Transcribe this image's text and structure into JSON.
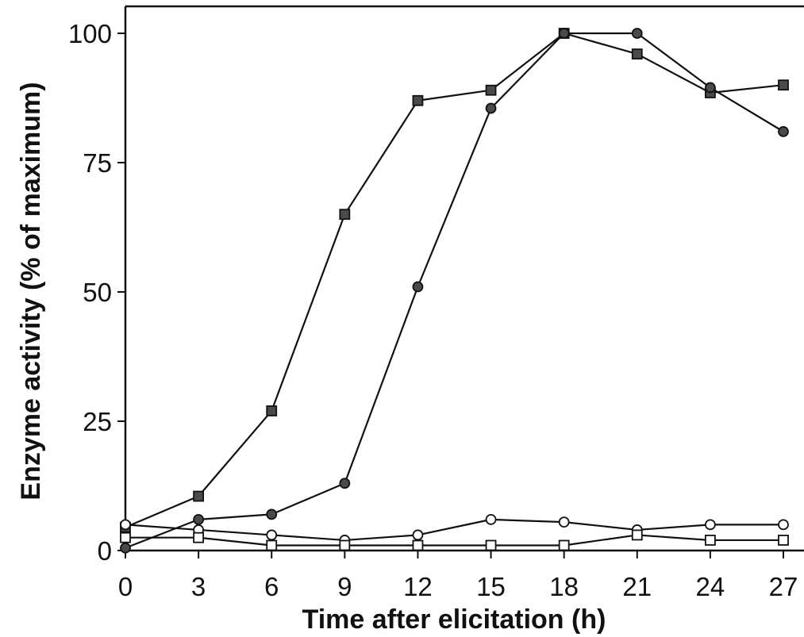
{
  "chart_data": {
    "type": "line",
    "title": "",
    "xlabel": "Time after elicitation (h)",
    "ylabel": "Enzyme activity (% of maximum)",
    "xlim": [
      0,
      27
    ],
    "ylim": [
      0,
      100
    ],
    "x_ticks": [
      "0",
      "3",
      "6",
      "9",
      "12",
      "15",
      "18",
      "21",
      "24",
      "27"
    ],
    "y_ticks": [
      "0",
      "25",
      "50",
      "75",
      "100"
    ],
    "grid": false,
    "legend": "none",
    "x": [
      0,
      3,
      6,
      9,
      12,
      15,
      18,
      21,
      24,
      27
    ],
    "series": [
      {
        "marker": "square",
        "fill": "#4a4a4a",
        "values": [
          4.5,
          10.5,
          27,
          65,
          87,
          89,
          100,
          96,
          88.5,
          90
        ]
      },
      {
        "marker": "circle",
        "fill": "#4a4a4a",
        "values": [
          0.5,
          6,
          7,
          13,
          51,
          85.5,
          100,
          100,
          89.5,
          81
        ]
      },
      {
        "marker": "circle",
        "fill": "#ffffff",
        "values": [
          5,
          4,
          3,
          2,
          3,
          6,
          5.5,
          4,
          5,
          5
        ]
      },
      {
        "marker": "square",
        "fill": "#ffffff",
        "values": [
          2.5,
          2.5,
          1,
          1,
          1,
          1,
          1,
          3,
          2,
          2
        ]
      }
    ]
  }
}
